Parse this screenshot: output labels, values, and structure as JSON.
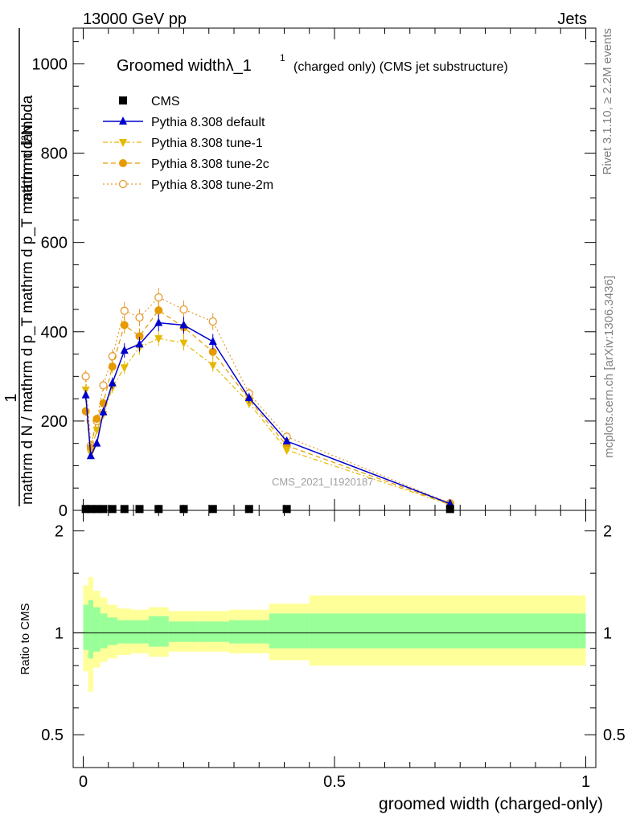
{
  "header": {
    "left": "13000 GeV pp",
    "right": "Jets"
  },
  "side_labels": {
    "rivet": "Rivet 3.1.10, ≥ 2.2M events",
    "mcplots": "mcplots.cern.ch [arXiv:1306.3436]"
  },
  "watermark": "CMS_2021_I1920187",
  "chart_data": {
    "type": "line",
    "title_main": "Groomed widthλ_1",
    "title_sup": "1",
    "title_note": "(charged only) (CMS jet substructure)",
    "xlabel": "groomed width (charged-only)",
    "ylabel_num": "1",
    "ylabel_den": "mathrm d N / mathrm d p_T mathrm d p_T mathrm d lambda",
    "ylabel_top": "mathrm d²N",
    "ratio_ylabel": "Ratio to CMS",
    "xlim": [
      -0.02,
      1.02
    ],
    "ylim": [
      0,
      1080
    ],
    "ratio_ylim": [
      0.4,
      2.3
    ],
    "x_ticks": [
      "0",
      "0.5",
      "1"
    ],
    "y_ticks": [
      "0",
      "200",
      "400",
      "600",
      "800",
      "1000"
    ],
    "ratio_ticks": [
      "0.5",
      "1",
      "2"
    ],
    "legend": [
      {
        "name": "CMS",
        "color": "#000000",
        "marker": "square",
        "dash": "none"
      },
      {
        "name": "Pythia 8.308 default",
        "color": "#0000cc",
        "marker": "triangle-up",
        "dash": "solid"
      },
      {
        "name": "Pythia 8.308 tune-1",
        "color": "#e6b800",
        "marker": "triangle-down",
        "dash": "dashdot"
      },
      {
        "name": "Pythia 8.308 tune-2c",
        "color": "#e69a00",
        "marker": "circle",
        "dash": "dash"
      },
      {
        "name": "Pythia 8.308 tune-2m",
        "color": "#e69a30",
        "marker": "open-circle",
        "dash": "dot"
      }
    ],
    "x": [
      0.005,
      0.015,
      0.027,
      0.04,
      0.058,
      0.082,
      0.112,
      0.15,
      0.2,
      0.258,
      0.33,
      0.405,
      0.73
    ],
    "cms": [
      3,
      3,
      3,
      3,
      3,
      3,
      3,
      3,
      3,
      3,
      3,
      3,
      3
    ],
    "series": [
      {
        "name": "Pythia 8.308 default",
        "values": [
          258,
          122,
          150,
          220,
          285,
          358,
          372,
          420,
          415,
          378,
          252,
          155,
          15
        ]
      },
      {
        "name": "Pythia 8.308 tune-1",
        "values": [
          270,
          128,
          180,
          215,
          275,
          320,
          365,
          385,
          375,
          325,
          240,
          135,
          13
        ]
      },
      {
        "name": "Pythia 8.308 tune-2c",
        "values": [
          222,
          140,
          205,
          240,
          322,
          415,
          390,
          448,
          410,
          355,
          248,
          145,
          14
        ]
      },
      {
        "name": "Pythia 8.308 tune-2m",
        "values": [
          300,
          145,
          200,
          280,
          345,
          447,
          432,
          477,
          450,
          423,
          262,
          165,
          16
        ]
      }
    ],
    "ratio_bins": [
      [
        0,
        0.01,
        0.89,
        1.21,
        0.77,
        1.38
      ],
      [
        0.01,
        0.02,
        0.84,
        1.25,
        0.67,
        1.46
      ],
      [
        0.02,
        0.034,
        0.88,
        1.19,
        0.79,
        1.33
      ],
      [
        0.034,
        0.048,
        0.9,
        1.14,
        0.82,
        1.27
      ],
      [
        0.048,
        0.068,
        0.92,
        1.11,
        0.84,
        1.21
      ],
      [
        0.068,
        0.095,
        0.93,
        1.09,
        0.86,
        1.18
      ],
      [
        0.095,
        0.13,
        0.93,
        1.09,
        0.87,
        1.17
      ],
      [
        0.13,
        0.17,
        0.91,
        1.12,
        0.85,
        1.19
      ],
      [
        0.17,
        0.23,
        0.94,
        1.08,
        0.88,
        1.16
      ],
      [
        0.23,
        0.29,
        0.94,
        1.08,
        0.88,
        1.16
      ],
      [
        0.29,
        0.37,
        0.93,
        1.09,
        0.87,
        1.17
      ],
      [
        0.37,
        0.45,
        0.9,
        1.14,
        0.83,
        1.22
      ],
      [
        0.45,
        1.0,
        0.9,
        1.14,
        0.8,
        1.29
      ]
    ]
  }
}
